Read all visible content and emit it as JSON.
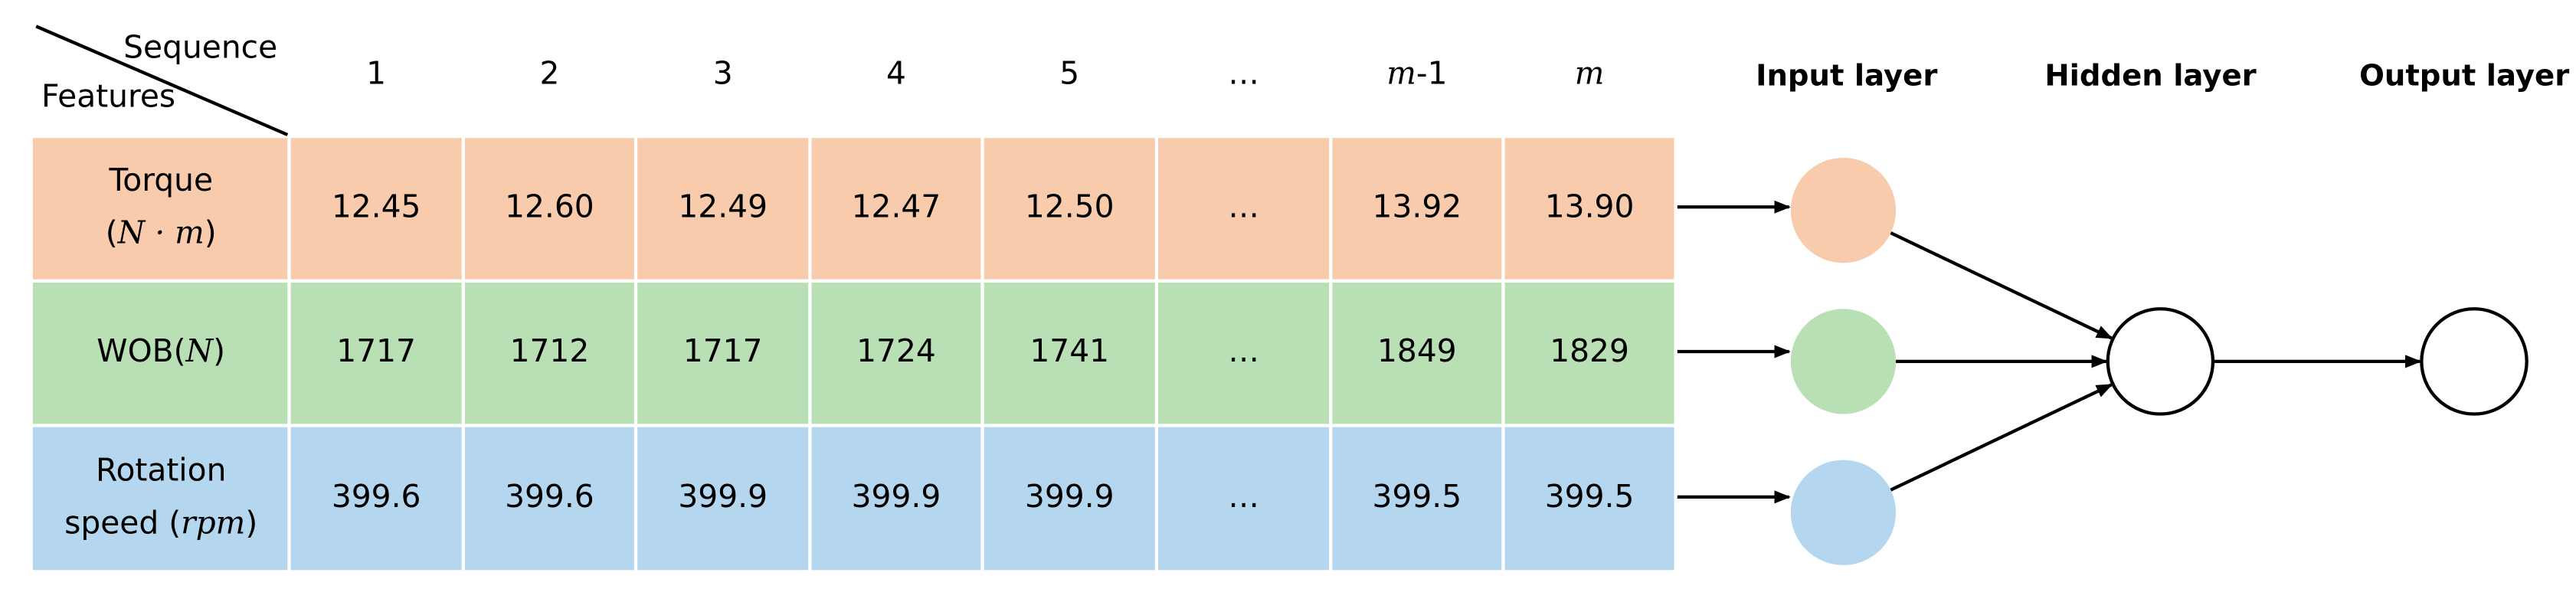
{
  "corner": {
    "top": "Sequence",
    "bottom": "Features"
  },
  "columns": [
    [
      {
        "text": "1"
      }
    ],
    [
      {
        "text": "2"
      }
    ],
    [
      {
        "text": "3"
      }
    ],
    [
      {
        "text": "4"
      }
    ],
    [
      {
        "text": "5"
      }
    ],
    [
      {
        "text": "…"
      }
    ],
    [
      {
        "text": "m",
        "italic": true
      },
      {
        "text": "-1"
      }
    ],
    [
      {
        "text": "m",
        "italic": true
      }
    ]
  ],
  "rows": [
    {
      "label": [
        [
          {
            "text": "Torque"
          }
        ],
        [
          {
            "text": "("
          },
          {
            "text": "N · m",
            "italic": true
          },
          {
            "text": ")"
          }
        ]
      ],
      "cells": [
        "12.45",
        "12.60",
        "12.49",
        "12.47",
        "12.50",
        "…",
        "13.92",
        "13.90"
      ]
    },
    {
      "label": [
        [
          {
            "text": "WOB("
          },
          {
            "text": "N",
            "italic": true
          },
          {
            "text": ")"
          }
        ]
      ],
      "cells": [
        "1717",
        "1712",
        "1717",
        "1724",
        "1741",
        "…",
        "1849",
        "1829"
      ]
    },
    {
      "label": [
        [
          {
            "text": "Rotation"
          }
        ],
        [
          {
            "text": "speed ("
          },
          {
            "text": "rpm",
            "italic": true
          },
          {
            "text": ")"
          }
        ]
      ],
      "cells": [
        "399.6",
        "399.6",
        "399.9",
        "399.9",
        "399.9",
        "…",
        "399.5",
        "399.5"
      ]
    }
  ],
  "layers": [
    "Input layer",
    "Hidden layer",
    "Output layer"
  ]
}
